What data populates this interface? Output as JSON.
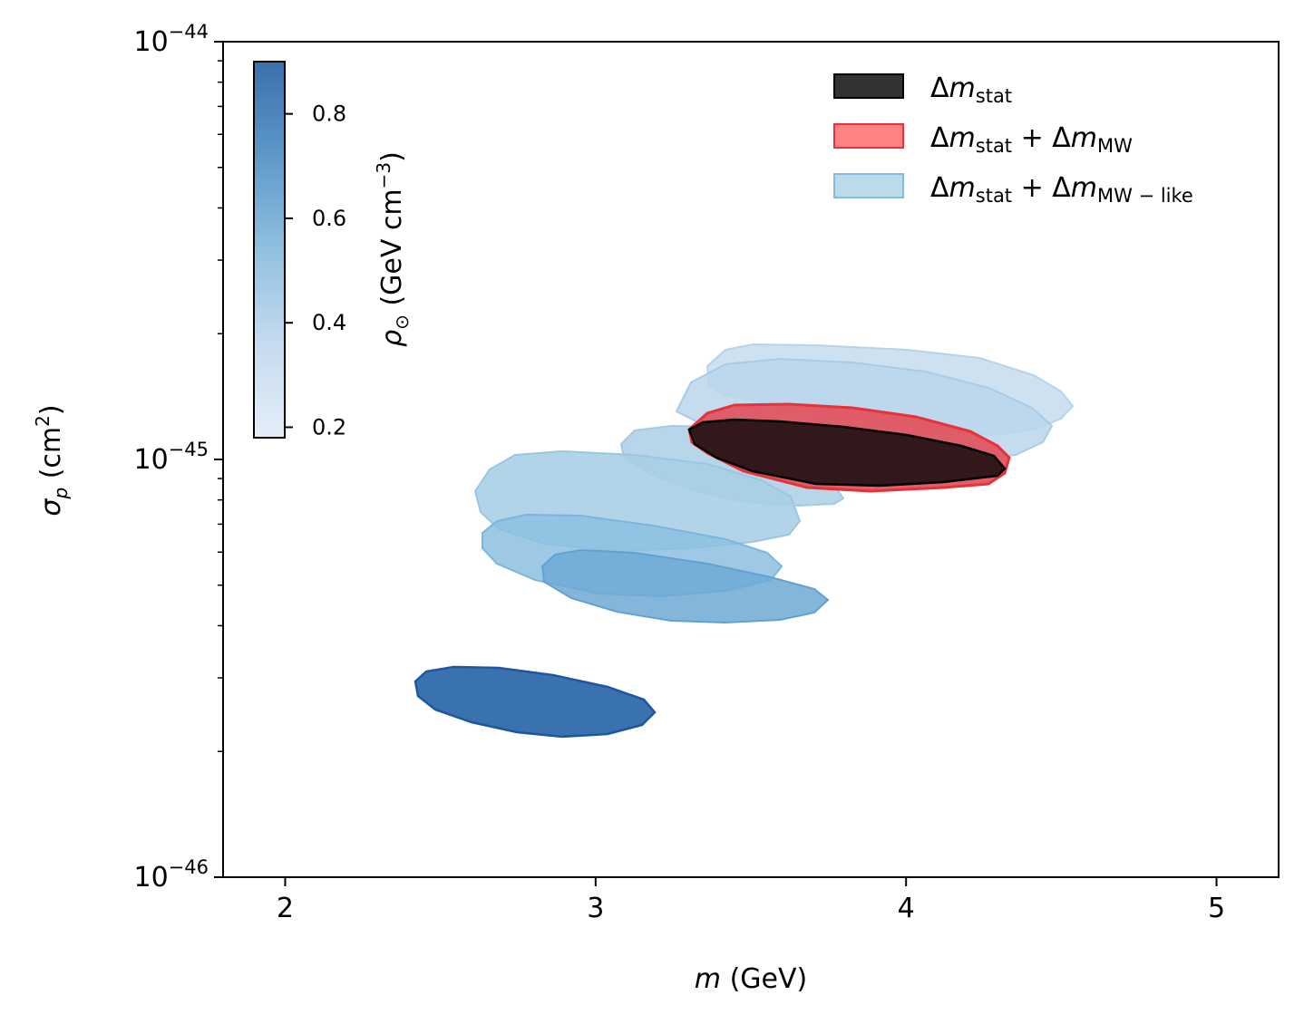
{
  "chart_data": {
    "type": "contour",
    "xlabel": "m (GeV)",
    "ylabel": "σ_p (cm²)",
    "xlim": [
      1.8,
      5.2
    ],
    "ylim": [
      1e-46,
      1e-44
    ],
    "yscale": "log",
    "x_ticks": [
      2,
      3,
      4,
      5
    ],
    "x_tick_labels": [
      "2",
      "3",
      "4",
      "5"
    ],
    "y_ticks": [
      1e-46,
      1e-45,
      1e-44
    ],
    "y_tick_labels": [
      {
        "base": "10",
        "exp": "−46"
      },
      {
        "base": "10",
        "exp": "−45"
      },
      {
        "base": "10",
        "exp": "−44"
      }
    ],
    "colorbar": {
      "label": "ρ⊙ (GeV cm⁻³)",
      "range": [
        0.18,
        0.9
      ],
      "ticks": [
        0.2,
        0.4,
        0.6,
        0.8
      ],
      "tick_labels": [
        "0.2",
        "0.4",
        "0.6",
        "0.8"
      ],
      "colormap": "Blues",
      "color_low": "#e4eef8",
      "color_high": "#3a70ac"
    },
    "legend": {
      "placement": "top-right",
      "entries": [
        {
          "label_base": "Δm",
          "label_sub": "stat",
          "face": "#000000",
          "edge": "#000000",
          "alpha": 0.8
        },
        {
          "label_base": "Δm",
          "label_sub": "stat",
          "label_plus": "+",
          "label_base2": "Δm",
          "label_sub2": "MW",
          "face": "#ff4d4d",
          "edge": "#e8323a",
          "alpha": 0.7
        },
        {
          "label_base": "Δm",
          "label_sub": "stat",
          "label_plus": "+",
          "label_base2": "Δm",
          "label_sub2": "MW−like",
          "face": "#9ecae1",
          "edge": "#87bbdd",
          "alpha": 0.7
        }
      ]
    },
    "regions": [
      {
        "group": "MW-like",
        "rho": 0.2,
        "fill": "#c6dcee",
        "x_range": [
          3.35,
          4.55
        ],
        "y_range": [
          1.08e-45,
          1.9e-45
        ]
      },
      {
        "group": "MW-like",
        "rho": 0.25,
        "fill": "#bad6eb",
        "x_range": [
          3.25,
          4.5
        ],
        "y_range": [
          9.2e-46,
          1.65e-45
        ]
      },
      {
        "group": "MW-like",
        "rho": 0.35,
        "fill": "#b0d2e7",
        "x_range": [
          2.85,
          4.15
        ],
        "y_range": [
          7.5e-46,
          1.22e-45
        ]
      },
      {
        "group": "MW-like",
        "rho": 0.4,
        "fill": "#a9cfe5",
        "x_range": [
          2.38,
          3.65
        ],
        "y_range": [
          6e-46,
          1.05e-45
        ]
      },
      {
        "group": "MW-like",
        "rho": 0.5,
        "fill": "#8cbfe0",
        "x_range": [
          2.52,
          3.6
        ],
        "y_range": [
          5.2e-46,
          7.2e-46
        ]
      },
      {
        "group": "MW-like",
        "rho": 0.55,
        "fill": "#6ea9d4",
        "x_range": [
          2.82,
          3.75
        ],
        "y_range": [
          4.3e-46,
          6e-46
        ]
      },
      {
        "group": "MW-like",
        "rho": 0.88,
        "fill": "#2e6aab",
        "x_range": [
          2.4,
          3.2
        ],
        "y_range": [
          2.2e-46,
          3.2e-46
        ]
      },
      {
        "group": "MW",
        "rho": 0.3,
        "fill": "#e05560",
        "x_range": [
          3.3,
          4.33
        ],
        "y_range": [
          9.2e-46,
          1.37e-45
        ]
      },
      {
        "group": "stat",
        "rho": 0.3,
        "fill": "#2d1619",
        "x_range": [
          3.3,
          4.32
        ],
        "y_range": [
          9e-46,
          1.27e-45
        ]
      }
    ]
  }
}
